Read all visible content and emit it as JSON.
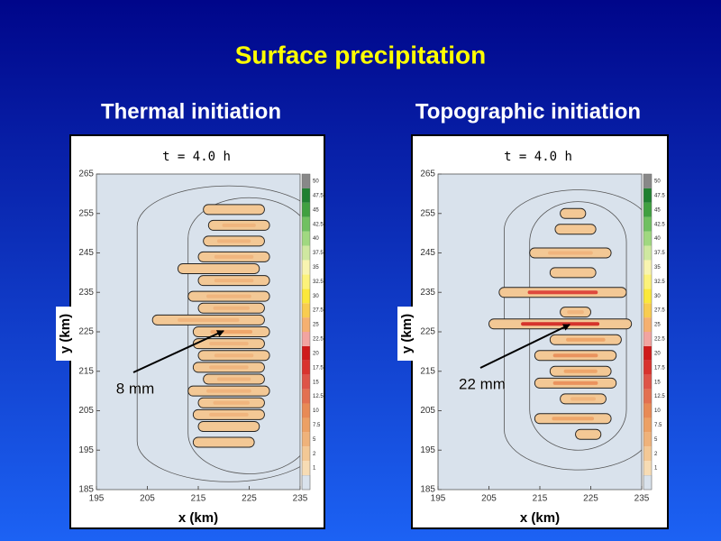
{
  "slide_title": "Surface precipitation",
  "chart_data": [
    {
      "type": "contour",
      "title": "Thermal initiation",
      "subtitle": "t = 4.0 h",
      "x_label": "x (km)",
      "y_label": "y (km)",
      "xlim": [
        195,
        235
      ],
      "xticks": [
        195,
        205,
        215,
        225,
        235
      ],
      "ylim": [
        185,
        265
      ],
      "yticks": [
        185,
        195,
        205,
        215,
        225,
        235,
        245,
        255,
        265
      ],
      "annotation": "8 mm",
      "colorbar_levels": [
        1,
        2,
        5,
        7.5,
        10,
        12.5,
        15,
        17.5,
        20,
        22.5,
        25,
        27.5,
        30,
        32.5,
        35,
        37.5,
        40,
        42.5,
        45,
        47.5,
        50
      ],
      "colorbar_colors": [
        "#f7dcb4",
        "#f3c895",
        "#efb27a",
        "#eca064",
        "#e88a55",
        "#e37050",
        "#de5448",
        "#d9332e",
        "#cf1a1a",
        "#f2a4a0",
        "#f5b070",
        "#f8cc50",
        "#fbe83a",
        "#fcf27a",
        "#f8f4b0",
        "#cfe8a0",
        "#a0d880",
        "#70c060",
        "#40a040",
        "#208030"
      ],
      "bands": [
        {
          "y": 256,
          "x": [
            216,
            228
          ],
          "peak": 4
        },
        {
          "y": 252,
          "x": [
            217,
            229
          ],
          "peak": 5
        },
        {
          "y": 248,
          "x": [
            216,
            228
          ],
          "peak": 5
        },
        {
          "y": 244,
          "x": [
            215,
            229
          ],
          "peak": 5
        },
        {
          "y": 241,
          "x": [
            211,
            227
          ],
          "peak": 4
        },
        {
          "y": 238,
          "x": [
            215,
            229
          ],
          "peak": 5
        },
        {
          "y": 234,
          "x": [
            213,
            229
          ],
          "peak": 5
        },
        {
          "y": 231,
          "x": [
            215,
            228
          ],
          "peak": 6
        },
        {
          "y": 228,
          "x": [
            206,
            228
          ],
          "peak": 5
        },
        {
          "y": 225,
          "x": [
            214,
            229
          ],
          "peak": 8
        },
        {
          "y": 222,
          "x": [
            214,
            228
          ],
          "peak": 6
        },
        {
          "y": 219,
          "x": [
            215,
            229
          ],
          "peak": 5
        },
        {
          "y": 216,
          "x": [
            214,
            228
          ],
          "peak": 5
        },
        {
          "y": 213,
          "x": [
            216,
            228
          ],
          "peak": 5
        },
        {
          "y": 210,
          "x": [
            213,
            229
          ],
          "peak": 5
        },
        {
          "y": 207,
          "x": [
            215,
            228
          ],
          "peak": 5
        },
        {
          "y": 204,
          "x": [
            214,
            228
          ],
          "peak": 5
        },
        {
          "y": 201,
          "x": [
            215,
            227
          ],
          "peak": 4
        },
        {
          "y": 197,
          "x": [
            214,
            226
          ],
          "peak": 3
        }
      ]
    },
    {
      "type": "contour",
      "title": "Topographic initiation",
      "subtitle": "t = 4.0 h",
      "x_label": "x (km)",
      "y_label": "y (km)",
      "xlim": [
        195,
        235
      ],
      "xticks": [
        195,
        205,
        215,
        225,
        235
      ],
      "ylim": [
        185,
        265
      ],
      "yticks": [
        185,
        195,
        205,
        215,
        225,
        235,
        245,
        255,
        265
      ],
      "annotation": "22 mm",
      "colorbar_levels": [
        1,
        2,
        5,
        7.5,
        10,
        12.5,
        15,
        17.5,
        20,
        22.5,
        25,
        27.5,
        30,
        32.5,
        35,
        37.5,
        40,
        42.5,
        45,
        47.5,
        50
      ],
      "colorbar_colors": [
        "#f7dcb4",
        "#f3c895",
        "#efb27a",
        "#eca064",
        "#e88a55",
        "#e37050",
        "#de5448",
        "#d9332e",
        "#cf1a1a",
        "#f2a4a0",
        "#f5b070",
        "#f8cc50",
        "#fbe83a",
        "#fcf27a",
        "#f8f4b0",
        "#cfe8a0",
        "#a0d880",
        "#70c060",
        "#40a040",
        "#208030"
      ],
      "bands": [
        {
          "y": 255,
          "x": [
            219,
            224
          ],
          "peak": 2
        },
        {
          "y": 251,
          "x": [
            218,
            226
          ],
          "peak": 3
        },
        {
          "y": 245,
          "x": [
            213,
            229
          ],
          "peak": 5
        },
        {
          "y": 240,
          "x": [
            217,
            226
          ],
          "peak": 4
        },
        {
          "y": 235,
          "x": [
            207,
            232
          ],
          "peak": 18
        },
        {
          "y": 230,
          "x": [
            219,
            225
          ],
          "peak": 5
        },
        {
          "y": 227,
          "x": [
            205,
            233
          ],
          "peak": 22
        },
        {
          "y": 223,
          "x": [
            217,
            231
          ],
          "peak": 8
        },
        {
          "y": 219,
          "x": [
            214,
            230
          ],
          "peak": 10
        },
        {
          "y": 215,
          "x": [
            217,
            229
          ],
          "peak": 8
        },
        {
          "y": 212,
          "x": [
            214,
            230
          ],
          "peak": 12
        },
        {
          "y": 208,
          "x": [
            219,
            228
          ],
          "peak": 5
        },
        {
          "y": 203,
          "x": [
            214,
            229
          ],
          "peak": 8
        },
        {
          "y": 199,
          "x": [
            222,
            227
          ],
          "peak": 4
        }
      ]
    }
  ]
}
